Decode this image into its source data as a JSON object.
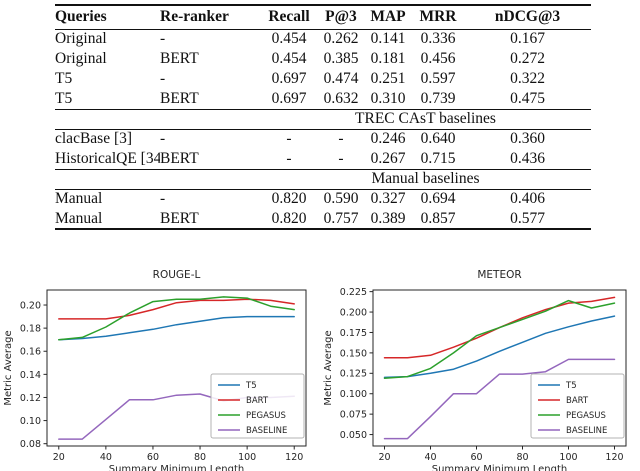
{
  "table": {
    "columns": [
      "Queries",
      "Re-ranker",
      "Recall",
      "P@3",
      "MAP",
      "MRR",
      "nDCG@3"
    ],
    "rows": [
      {
        "type": "data",
        "cells": [
          "Original",
          "-",
          "0.454",
          "0.262",
          "0.141",
          "0.336",
          "0.167"
        ]
      },
      {
        "type": "data",
        "cells": [
          "Original",
          "BERT",
          "0.454",
          "0.385",
          "0.181",
          "0.456",
          "0.272"
        ]
      },
      {
        "type": "data",
        "cells": [
          "T5",
          "-",
          "0.697",
          "0.474",
          "0.251",
          "0.597",
          "0.322"
        ]
      },
      {
        "type": "data",
        "cells": [
          "T5",
          "BERT",
          "0.697",
          "0.632",
          "0.310",
          "0.739",
          "0.475"
        ],
        "bold": [
          4,
          5,
          6
        ]
      },
      {
        "type": "section",
        "label": "TREC CAsT baselines"
      },
      {
        "type": "data",
        "cells": [
          "clacBase [3]",
          "-",
          "-",
          "-",
          "0.246",
          "0.640",
          "0.360"
        ]
      },
      {
        "type": "data",
        "cells": [
          "HistoricalQE [34]",
          "BERT",
          "-",
          "-",
          "0.267",
          "0.715",
          "0.436"
        ]
      },
      {
        "type": "section",
        "label": "Manual baselines"
      },
      {
        "type": "data",
        "cells": [
          "Manual",
          "-",
          "0.820",
          "0.590",
          "0.327",
          "0.694",
          "0.406"
        ]
      },
      {
        "type": "data",
        "cells": [
          "Manual",
          "BERT",
          "0.820",
          "0.757",
          "0.389",
          "0.857",
          "0.577"
        ]
      }
    ]
  },
  "chart_data": [
    {
      "type": "line",
      "title": "ROUGE-L",
      "xlabel": "Summary Minimum Length",
      "ylabel": "Metric Average",
      "x": [
        20,
        30,
        40,
        50,
        60,
        70,
        80,
        90,
        100,
        110,
        120
      ],
      "series": [
        {
          "name": "T5",
          "color": "#1f77b4",
          "values": [
            0.17,
            0.171,
            0.173,
            0.176,
            0.179,
            0.183,
            0.186,
            0.189,
            0.19,
            0.19,
            0.19
          ]
        },
        {
          "name": "BART",
          "color": "#d62728",
          "values": [
            0.188,
            0.188,
            0.188,
            0.191,
            0.196,
            0.202,
            0.204,
            0.204,
            0.205,
            0.204,
            0.201
          ]
        },
        {
          "name": "PEGASUS",
          "color": "#2ca02c",
          "values": [
            0.17,
            0.172,
            0.181,
            0.193,
            0.203,
            0.205,
            0.205,
            0.207,
            0.206,
            0.199,
            0.196
          ]
        },
        {
          "name": "BASELINE",
          "color": "#9467bd",
          "values": [
            0.084,
            0.084,
            0.101,
            0.118,
            0.118,
            0.122,
            0.123,
            0.117,
            0.12,
            0.12,
            0.121
          ]
        }
      ],
      "xlim": [
        15,
        125
      ],
      "ylim": [
        0.078,
        0.213
      ],
      "xticks": [
        20,
        40,
        60,
        80,
        100,
        120
      ],
      "yticks": [
        0.08,
        0.1,
        0.12,
        0.14,
        0.16,
        0.18,
        0.2
      ],
      "ytick_labels": [
        "0.08",
        "0.10",
        "0.12",
        "0.14",
        "0.16",
        "0.18",
        "0.20"
      ],
      "grid": false,
      "legend_position": "lower right"
    },
    {
      "type": "line",
      "title": "METEOR",
      "xlabel": "Summary Minimum Length",
      "ylabel": "Metric Average",
      "x": [
        20,
        30,
        40,
        50,
        60,
        70,
        80,
        90,
        100,
        110,
        120
      ],
      "series": [
        {
          "name": "T5",
          "color": "#1f77b4",
          "values": [
            0.12,
            0.121,
            0.125,
            0.13,
            0.14,
            0.152,
            0.163,
            0.174,
            0.182,
            0.189,
            0.195
          ]
        },
        {
          "name": "BART",
          "color": "#d62728",
          "values": [
            0.144,
            0.144,
            0.147,
            0.157,
            0.168,
            0.181,
            0.193,
            0.203,
            0.211,
            0.213,
            0.218
          ]
        },
        {
          "name": "PEGASUS",
          "color": "#2ca02c",
          "values": [
            0.119,
            0.121,
            0.131,
            0.15,
            0.171,
            0.181,
            0.191,
            0.201,
            0.214,
            0.205,
            0.211
          ]
        },
        {
          "name": "BASELINE",
          "color": "#9467bd",
          "values": [
            0.045,
            0.045,
            0.072,
            0.1,
            0.1,
            0.124,
            0.124,
            0.127,
            0.142,
            0.142,
            0.142
          ]
        }
      ],
      "xlim": [
        15,
        125
      ],
      "ylim": [
        0.036,
        0.227
      ],
      "xticks": [
        20,
        40,
        60,
        80,
        100,
        120
      ],
      "yticks": [
        0.05,
        0.075,
        0.1,
        0.125,
        0.15,
        0.175,
        0.2,
        0.225
      ],
      "ytick_labels": [
        "0.050",
        "0.075",
        "0.100",
        "0.125",
        "0.150",
        "0.175",
        "0.200",
        "0.225"
      ],
      "grid": false,
      "legend_position": "lower right"
    }
  ]
}
